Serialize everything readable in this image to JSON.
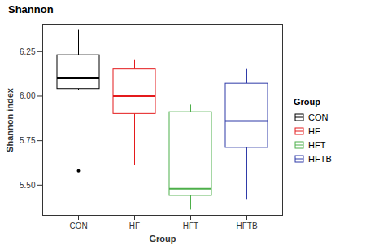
{
  "chart_data": {
    "type": "box",
    "title": "Shannon",
    "x_label": "Group",
    "y_label": "Shannon index",
    "legend_title": "Group",
    "legend": "right",
    "categories": [
      "CON",
      "HF",
      "HFT",
      "HFTB"
    ],
    "boxes": [
      {
        "name": "CON",
        "color": "#000000",
        "min": 6.03,
        "q1": 6.04,
        "median": 6.1,
        "q3": 6.23,
        "max": 6.37,
        "outliers": [
          5.58
        ]
      },
      {
        "name": "HF",
        "color": "#E41A1C",
        "min": 5.61,
        "q1": 5.9,
        "median": 6.0,
        "q3": 6.15,
        "max": 6.2,
        "outliers": []
      },
      {
        "name": "HFT",
        "color": "#4DAF4A",
        "min": 5.36,
        "q1": 5.44,
        "median": 5.48,
        "q3": 5.91,
        "max": 5.95,
        "outliers": []
      },
      {
        "name": "HFTB",
        "color": "#2F3BA8",
        "min": 5.42,
        "q1": 5.71,
        "median": 5.86,
        "q3": 6.07,
        "max": 6.15,
        "outliers": []
      }
    ],
    "ylim": [
      5.33,
      6.4
    ],
    "yticks": [
      {
        "value": 5.5,
        "label": "5.50"
      },
      {
        "value": 5.75,
        "label": "5.75"
      },
      {
        "value": 6.0,
        "label": "6.00"
      },
      {
        "value": 6.25,
        "label": "6.25"
      }
    ],
    "grid": false
  }
}
